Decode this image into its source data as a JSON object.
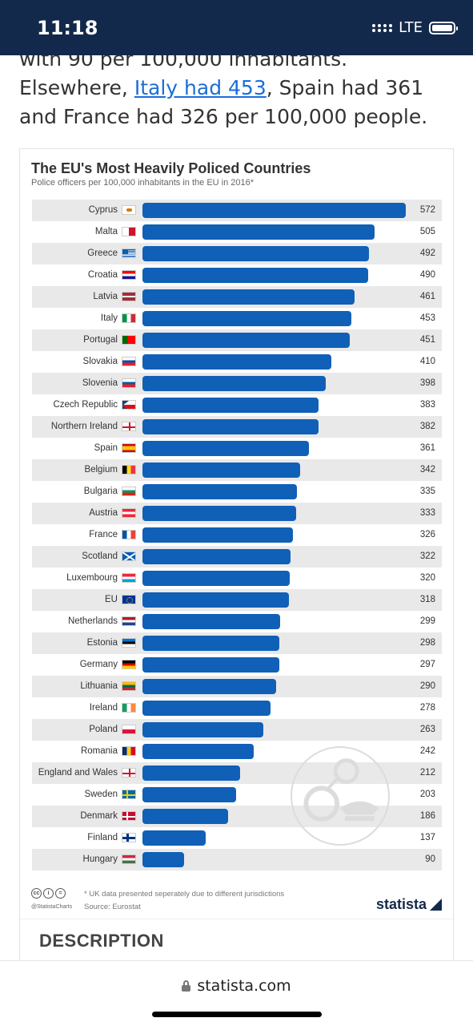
{
  "status": {
    "time": "11:18",
    "network": "LTE"
  },
  "article": {
    "line1": "with 90 per 100,000 inhabitants. Elsewhere,",
    "link": "Italy had 453",
    "line2": ", Spain had 361 and France had 326 per 100,000 people."
  },
  "chart_data": {
    "type": "bar",
    "orientation": "horizontal",
    "title": "The EU's Most Heavily Policed Countries",
    "subtitle": "Police officers per 100,000 inhabitants in the EU in 2016*",
    "xlim": [
      0,
      572
    ],
    "grid": false,
    "legend": "none",
    "bar_color": "#1060b8",
    "categories": [
      "Cyprus",
      "Malta",
      "Greece",
      "Croatia",
      "Latvia",
      "Italy",
      "Portugal",
      "Slovakia",
      "Slovenia",
      "Czech Republic",
      "Northern Ireland",
      "Spain",
      "Belgium",
      "Bulgaria",
      "Austria",
      "France",
      "Scotland",
      "Luxembourg",
      "EU",
      "Netherlands",
      "Estonia",
      "Germany",
      "Lithuania",
      "Ireland",
      "Poland",
      "Romania",
      "England and Wales",
      "Sweden",
      "Denmark",
      "Finland",
      "Hungary"
    ],
    "values": [
      572,
      505,
      492,
      490,
      461,
      453,
      451,
      410,
      398,
      383,
      382,
      361,
      342,
      335,
      333,
      326,
      322,
      320,
      318,
      299,
      298,
      297,
      290,
      278,
      263,
      242,
      212,
      203,
      186,
      137,
      90
    ],
    "flags": [
      "cyprus",
      "malta",
      "greece",
      "croatia",
      "latvia",
      "italy",
      "portugal",
      "slovakia",
      "slovenia",
      "czech",
      "northern-ireland",
      "spain",
      "belgium",
      "bulgaria",
      "austria",
      "france",
      "scotland",
      "luxembourg",
      "eu",
      "netherlands",
      "estonia",
      "germany",
      "lithuania",
      "ireland",
      "poland",
      "romania",
      "england-wales",
      "sweden",
      "denmark",
      "finland",
      "hungary"
    ],
    "note": "* UK data presented seperately due to different jurisdictions",
    "source": "Source: Eurostat"
  },
  "footer": {
    "handle": "@StatistaCharts",
    "brand": "statista",
    "cc_icons": [
      "cc-icon",
      "by-icon",
      "nd-icon"
    ]
  },
  "section": {
    "title": "DESCRIPTION"
  },
  "browser": {
    "url": "statista.com"
  }
}
